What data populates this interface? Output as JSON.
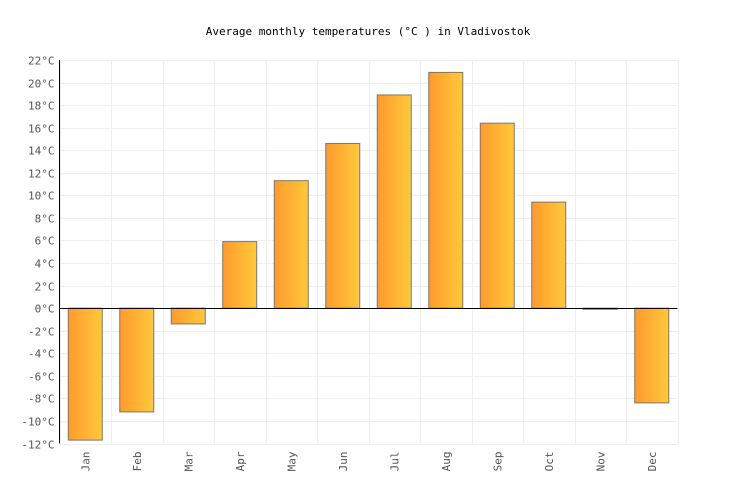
{
  "chart_data": {
    "type": "bar",
    "title": "Average monthly temperatures (°C ) in Vladivostok",
    "categories": [
      "Jan",
      "Feb",
      "Mar",
      "Apr",
      "May",
      "Jun",
      "Jul",
      "Aug",
      "Sep",
      "Oct",
      "Nov",
      "Dec"
    ],
    "values": [
      -11.7,
      -9.2,
      -1.4,
      5.9,
      11.3,
      14.6,
      18.9,
      20.9,
      16.4,
      9.4,
      -0.1,
      -8.4
    ],
    "xlabel": "",
    "ylabel": "",
    "ylim": [
      -12,
      22
    ],
    "yticks": [
      -12,
      -10,
      -8,
      -6,
      -4,
      -2,
      0,
      2,
      4,
      6,
      8,
      10,
      12,
      14,
      16,
      18,
      20,
      22
    ],
    "ytick_suffix": "°C",
    "grid": true,
    "colors": {
      "bar_start": "#ff9a2e",
      "bar_end": "#ffc93a",
      "bar_border": "#777777",
      "grid": "#eeeeee"
    }
  }
}
